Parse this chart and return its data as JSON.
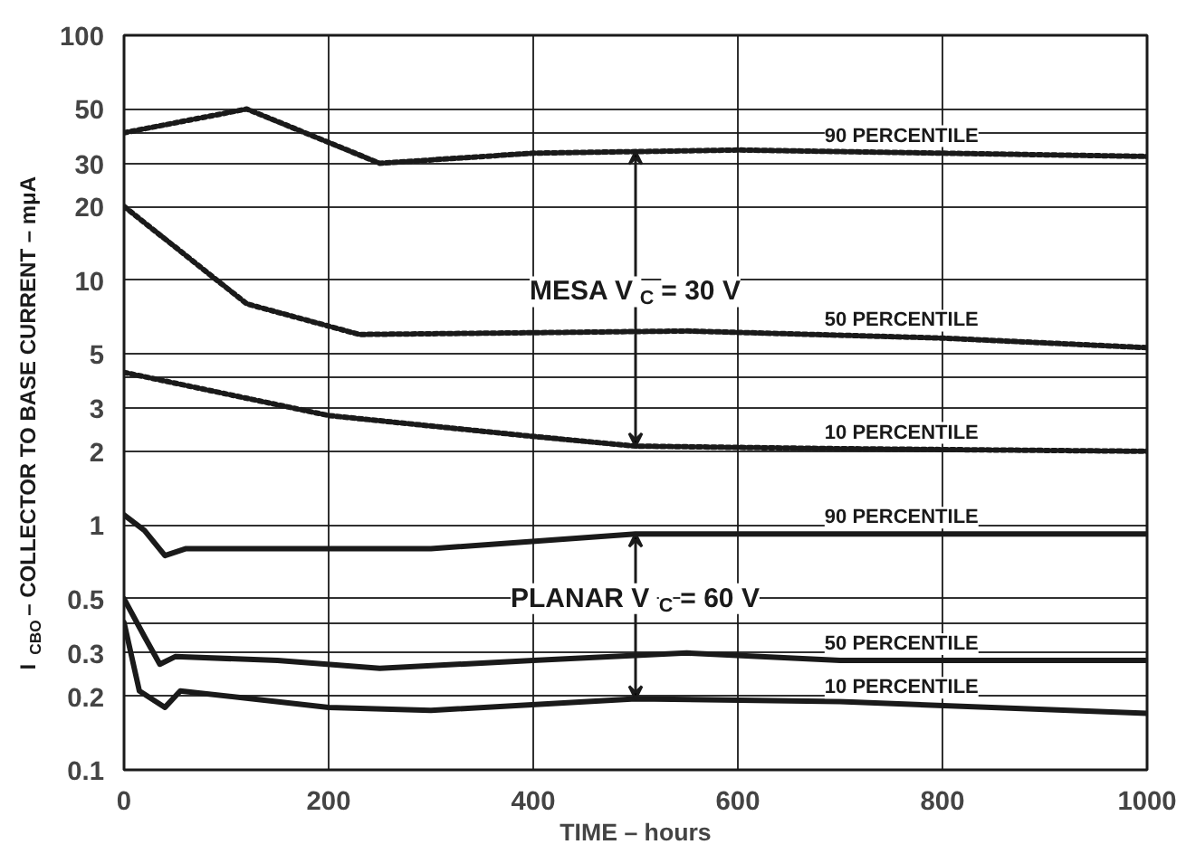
{
  "chart_data": {
    "type": "line",
    "xlabel": "TIME – hours",
    "ylabel": "I$_{CBO}$ – COLLECTOR TO BASE CURRENT – mμA",
    "xlim": [
      0,
      1000
    ],
    "xticks": [
      0,
      200,
      400,
      600,
      800,
      1000
    ],
    "ylim": [
      0.1,
      100
    ],
    "log": "y",
    "yticks": [
      0.1,
      0.2,
      0.3,
      {
        "value": 0.4,
        "label": null
      },
      0.5,
      1,
      2,
      3,
      {
        "value": 4,
        "label": null
      },
      5,
      10,
      20,
      30,
      {
        "value": 40,
        "label": null
      },
      50,
      100
    ],
    "grid": true,
    "legend": false,
    "marker": "none",
    "series": [
      {
        "name": "90 PERCENTILE",
        "color": "#1a1a1a",
        "line_style": "dotted",
        "x": [
          0,
          120,
          250,
          400,
          600,
          800,
          1000
        ],
        "values": [
          40,
          50,
          30,
          33,
          34,
          33,
          32
        ]
      },
      {
        "name": "50 PERCENTILE",
        "color": "#1a1a1a",
        "line_style": "dotted",
        "x": [
          0,
          120,
          230,
          400,
          550,
          800,
          1000
        ],
        "values": [
          20,
          8,
          6,
          6.1,
          6.2,
          5.8,
          5.3
        ]
      },
      {
        "name": "10 PERCENTILE",
        "color": "#1a1a1a",
        "line_style": "dotted",
        "x": [
          0,
          200,
          400,
          500,
          700,
          1000
        ],
        "values": [
          4.2,
          2.8,
          2.3,
          2.1,
          2.05,
          2
        ]
      },
      {
        "name": "90 PERCENTILE",
        "color": "#1a1a1a",
        "line_style": "solid",
        "x": [
          0,
          20,
          40,
          60,
          200,
          300,
          500,
          700,
          1000
        ],
        "values": [
          1.1,
          0.95,
          0.75,
          0.8,
          0.8,
          0.8,
          0.92,
          0.92,
          0.92
        ]
      },
      {
        "name": "50 PERCENTILE",
        "color": "#1a1a1a",
        "line_style": "solid",
        "x": [
          0,
          20,
          35,
          50,
          150,
          250,
          400,
          550,
          700,
          1000
        ],
        "values": [
          0.5,
          0.35,
          0.27,
          0.29,
          0.28,
          0.26,
          0.28,
          0.3,
          0.28,
          0.28
        ]
      },
      {
        "name": "10 PERCENTILE",
        "color": "#1a1a1a",
        "line_style": "solid",
        "x": [
          0,
          15,
          40,
          55,
          200,
          300,
          500,
          700,
          1000
        ],
        "values": [
          0.4,
          0.21,
          0.18,
          0.21,
          0.18,
          0.175,
          0.195,
          0.19,
          0.17
        ]
      }
    ],
    "annotations": [
      {
        "text": "MESA  V$_{C}$ = 30 V",
        "x": 500,
        "y": 33.5
      },
      {
        "text": "PLANAR  V$_{C}$ = 60 V",
        "x": 500,
        "y": 0.92
      }
    ]
  }
}
